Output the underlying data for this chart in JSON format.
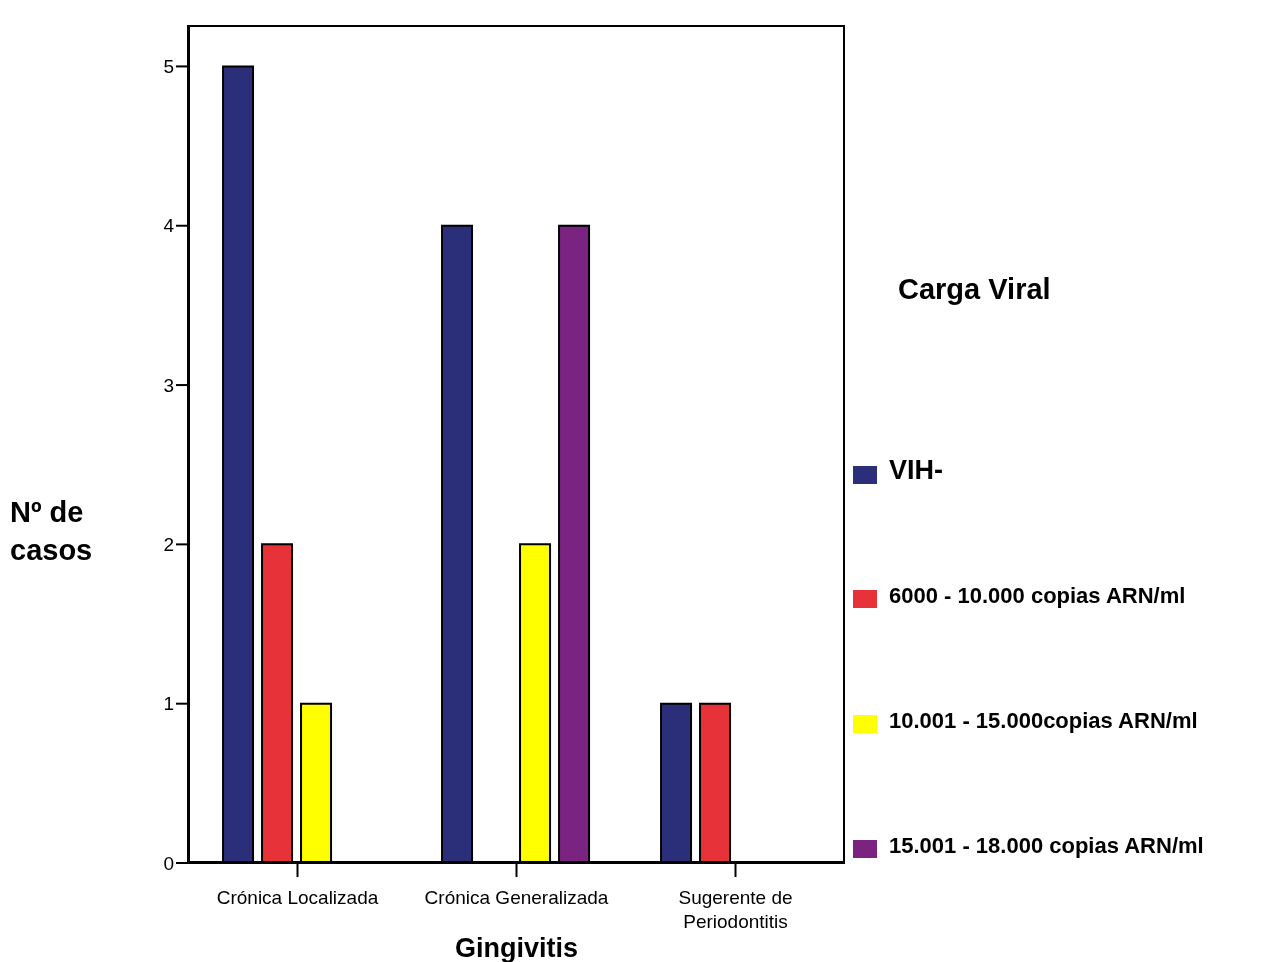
{
  "chart_data": {
    "type": "bar",
    "xlabel": "Gingivitis",
    "ylabel": "Nº de casos",
    "legend_title": "Carga Viral",
    "categories": [
      "Crónica Localizada",
      "Crónica Generalizada",
      "Sugerente de Periodontitis"
    ],
    "series": [
      {
        "name": "VIH-",
        "color": "#2b2f7a",
        "values": [
          5,
          4,
          1
        ]
      },
      {
        "name": "6000 - 10.000 copias ARN/ml",
        "color": "#e8323a",
        "values": [
          2,
          0,
          1
        ]
      },
      {
        "name": "10.001 - 15.000copias ARN/ml",
        "color": "#ffff00",
        "values": [
          1,
          2,
          null
        ]
      },
      {
        "name": "15.001 - 18.000 copias ARN/ml",
        "color": "#7b2380",
        "values": [
          0,
          4,
          null
        ]
      }
    ],
    "ylim": [
      0,
      5.26
    ],
    "yticks": [
      0,
      1,
      2,
      3,
      4,
      5
    ],
    "grid": false,
    "legend": "right"
  }
}
